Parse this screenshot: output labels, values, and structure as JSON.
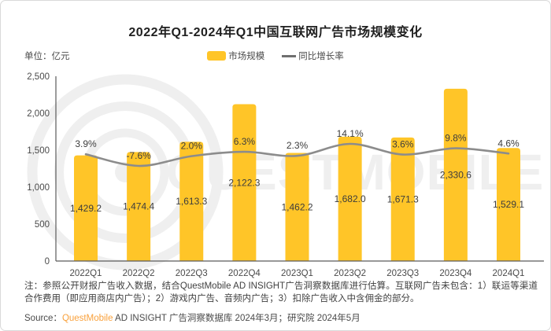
{
  "card": {
    "title": "2022年Q1-2024年Q1中国互联网广告市场规模变化",
    "unit_label": "单位：亿元",
    "note": "注：参照公开财报广告收入数据，结合QuestMobile AD INSIGHT广告洞察数据库进行估算。互联网广告未包含：1）联运等渠道合作费用（即应用商店内广告）；2）游戏内广告、音频内广告；3）扣除广告收入中含佣金的部分。",
    "source_prefix": "Source：",
    "source_brand": "QuestMobile",
    "source_rest": " AD INSIGHT 广告洞察数据库 2024年3月；研究院 2024年5月",
    "watermark": "QUESTMOBILE"
  },
  "legend": [
    {
      "label": "市场规模",
      "type": "bar",
      "color": "#FFC528"
    },
    {
      "label": "同比增长率",
      "type": "line",
      "color": "#8C8C8C"
    }
  ],
  "chart_data": {
    "type": "bar+line",
    "title": "2022年Q1-2024年Q1中国互联网广告市场规模变化",
    "categories": [
      "2022Q1",
      "2022Q2",
      "2022Q3",
      "2022Q4",
      "2023Q1",
      "2023Q2",
      "2023Q3",
      "2023Q4",
      "2024Q1"
    ],
    "series": [
      {
        "name": "市场规模",
        "type": "bar",
        "unit": "亿元",
        "values": [
          1429.2,
          1474.4,
          1613.3,
          2122.3,
          1462.2,
          1682.0,
          1671.3,
          2330.6,
          1529.1
        ],
        "labels": [
          "1,429.2",
          "1,474.4",
          "1,613.3",
          "2,122.3",
          "1,462.2",
          "1,682.0",
          "1,671.3",
          "2,330.6",
          "1,529.1"
        ],
        "color": "#FFC528"
      },
      {
        "name": "同比增长率",
        "type": "line",
        "unit": "%",
        "values": [
          3.9,
          -7.6,
          2.0,
          6.3,
          2.3,
          14.1,
          3.6,
          9.8,
          4.6
        ],
        "labels": [
          "3.9%",
          "-7.6%",
          "2.0%",
          "6.3%",
          "2.3%",
          "14.1%",
          "3.6%",
          "9.8%",
          "4.6%"
        ],
        "color": "#8C8C8C"
      }
    ],
    "y_axis": {
      "min": 0,
      "max": 2500,
      "ticks": [
        "0",
        "500",
        "1,000",
        "1,500",
        "2,000",
        "2,500"
      ]
    },
    "grid": false,
    "legend_position": "top"
  },
  "colors": {
    "bar": "#FFC528",
    "line": "#8C8C8C",
    "axis": "#5a5a5a",
    "label_text": "#3c3c3c",
    "watermark": "#efefef",
    "brand_orange": "#F9A13C"
  }
}
